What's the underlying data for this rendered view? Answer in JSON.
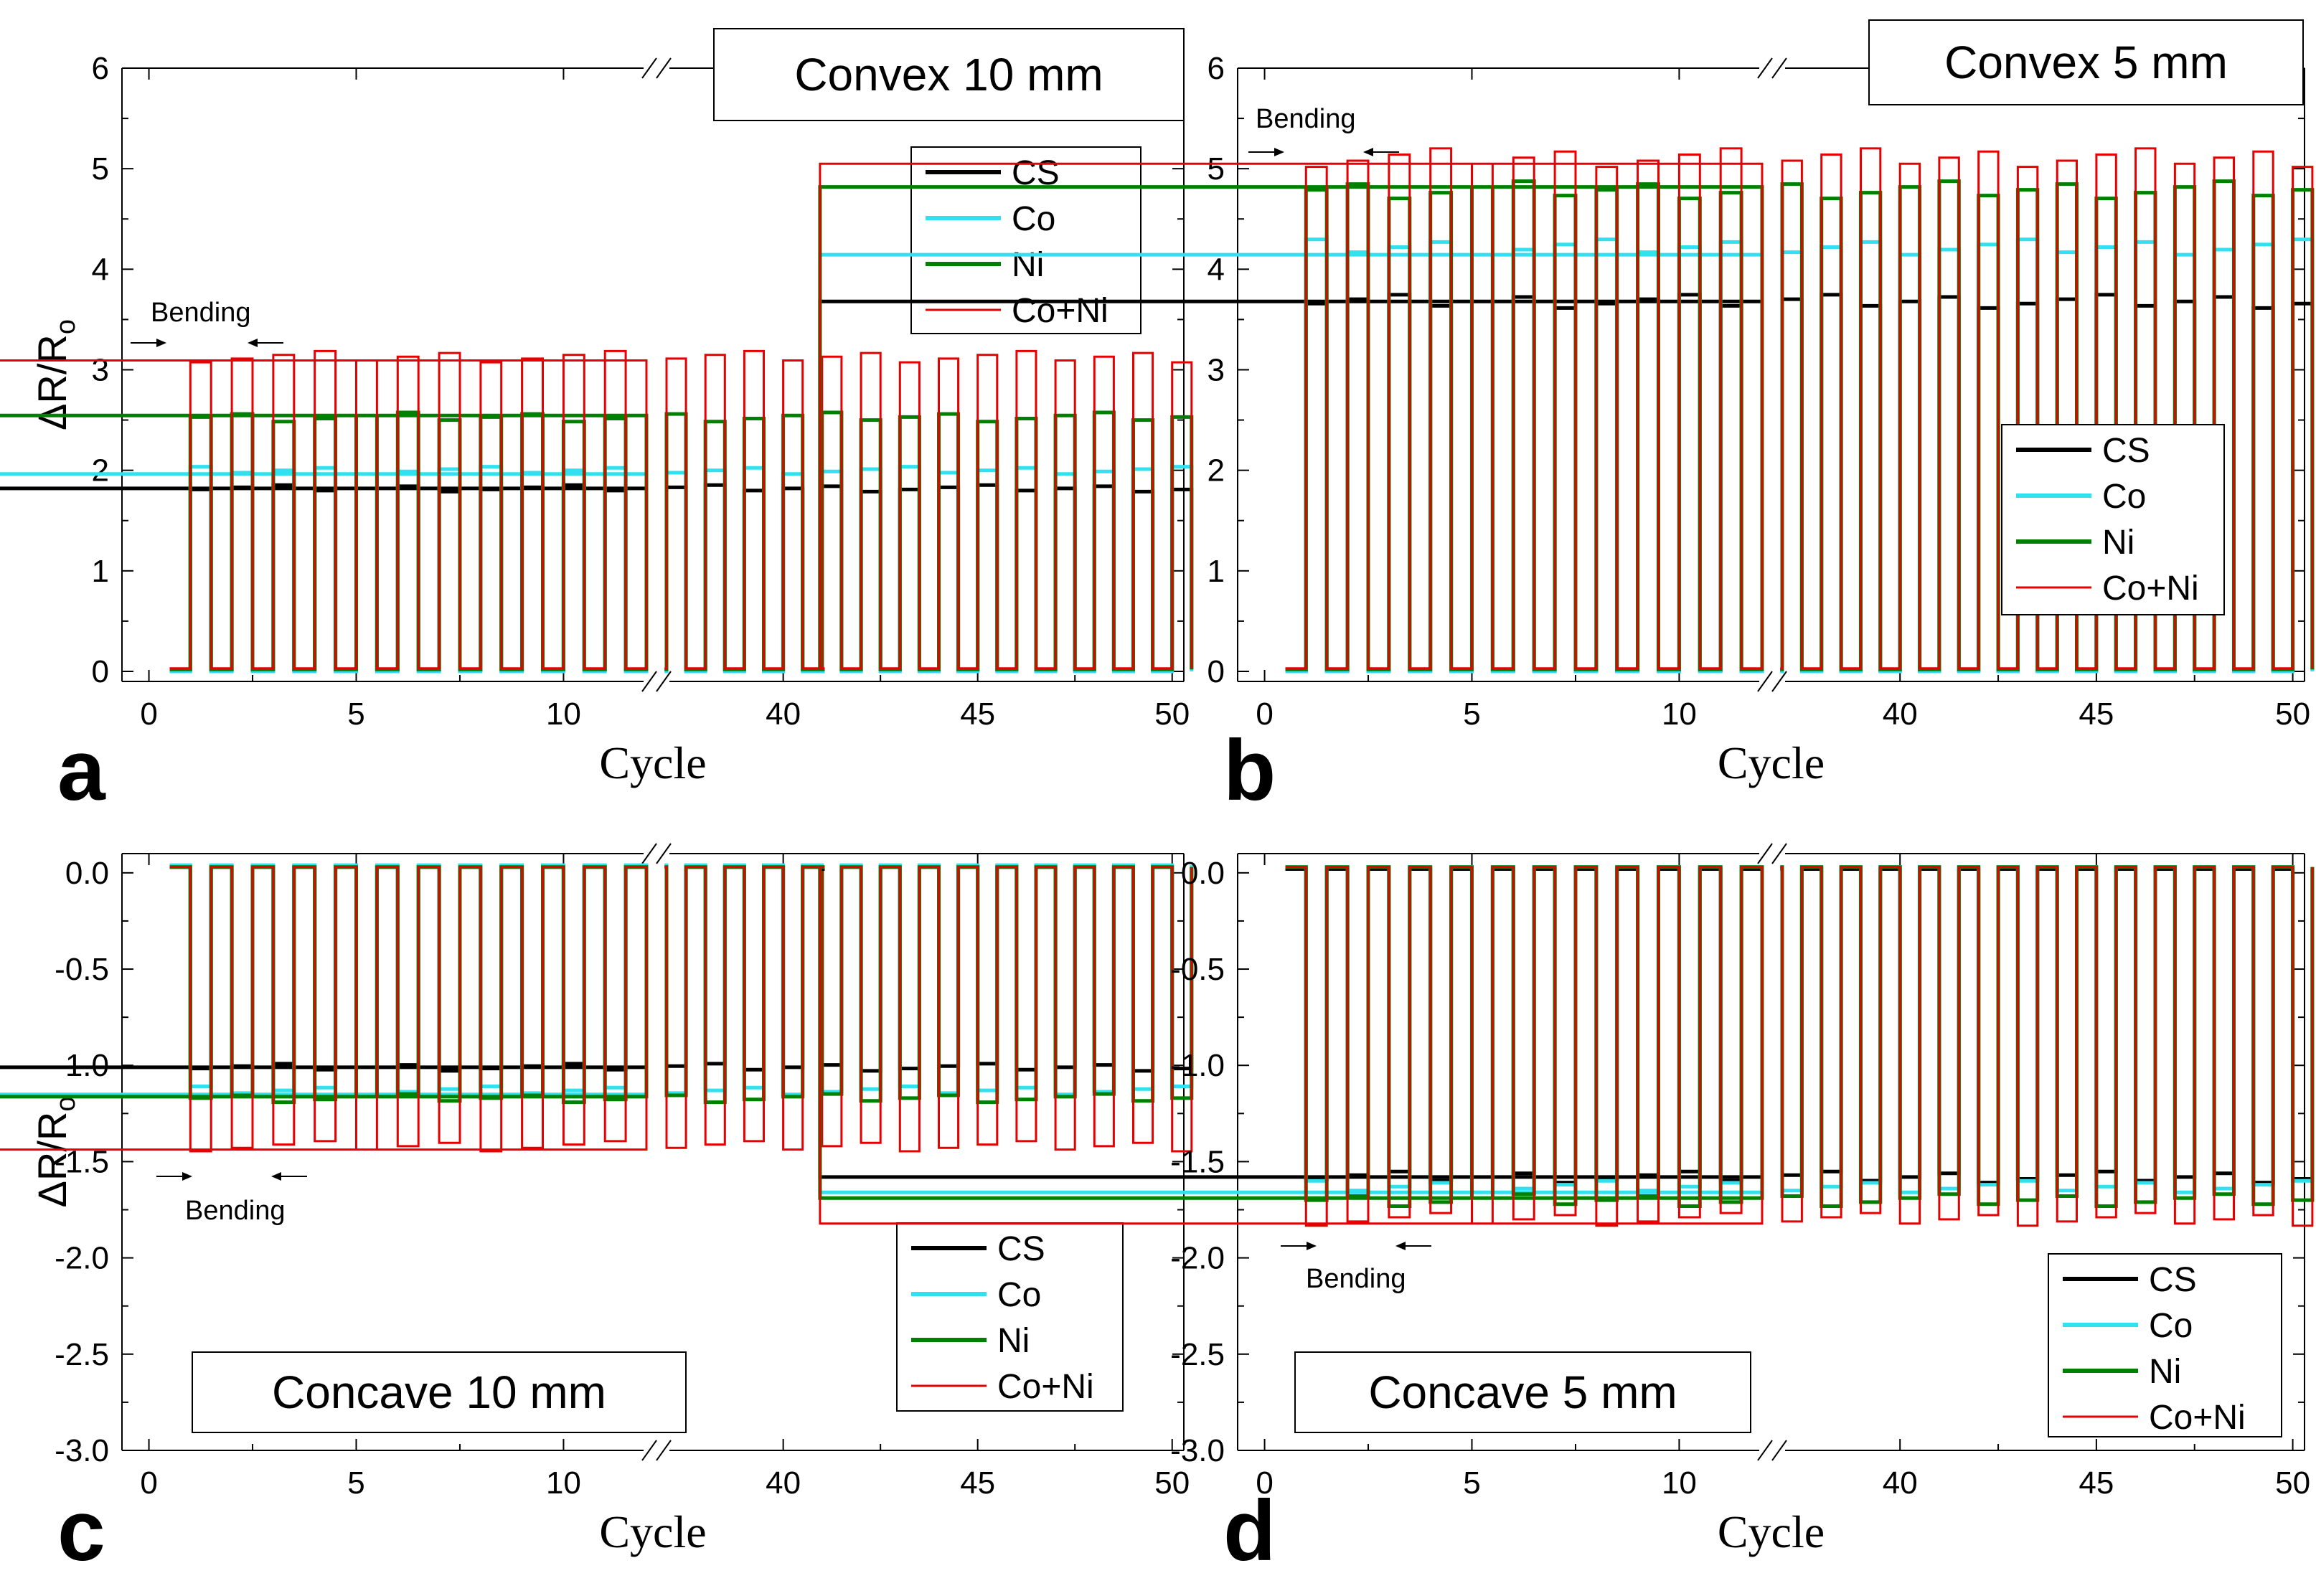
{
  "figure": {
    "ylabel": "ΔR/Ro",
    "xlabel": "Cycle",
    "bending_label": "Bending",
    "series_names": [
      "CS",
      "Co",
      "Ni",
      "Co+Ni"
    ],
    "series_colors": [
      "#000000",
      "#33e0f0",
      "#008000",
      "#e60000"
    ]
  },
  "chart_data": [
    {
      "panel": "a",
      "type": "line",
      "title": "Convex 10 mm",
      "xlabel": "Cycle",
      "ylabel": "ΔR/Ro",
      "x_break": [
        12,
        37
      ],
      "xticks_left": [
        0,
        5,
        10
      ],
      "xticks_right": [
        40,
        45,
        50
      ],
      "xtick_labels": [
        "0",
        "5",
        "10",
        "40",
        "45",
        "50"
      ],
      "ylim": [
        -0.1,
        6
      ],
      "yticks": [
        0,
        1,
        2,
        3,
        4,
        5,
        6
      ],
      "ytick_labels": [
        "0",
        "1",
        "2",
        "3",
        "4",
        "5",
        "6"
      ],
      "legend_position": "top-right",
      "waveform": "square pulse each cycle between baseline and bent level",
      "series": [
        {
          "name": "CS",
          "color": "#000000",
          "baseline": 0.02,
          "bent_level": 1.82
        },
        {
          "name": "Co",
          "color": "#33e0f0",
          "baseline": 0.0,
          "bent_level": 2.0
        },
        {
          "name": "Ni",
          "color": "#008000",
          "baseline": 0.02,
          "bent_level": 2.53
        },
        {
          "name": "Co+Ni",
          "color": "#e60000",
          "baseline": 0.03,
          "bent_level": 3.13
        }
      ]
    },
    {
      "panel": "b",
      "type": "line",
      "title": "Convex 5 mm",
      "xlabel": "Cycle",
      "ylabel": "",
      "x_break": [
        12,
        37
      ],
      "xticks_left": [
        0,
        5,
        10
      ],
      "xticks_right": [
        40,
        45,
        50
      ],
      "xtick_labels": [
        "0",
        "5",
        "10",
        "40",
        "45",
        "50"
      ],
      "ylim": [
        -0.1,
        6
      ],
      "yticks": [
        0,
        1,
        2,
        3,
        4,
        5,
        6
      ],
      "ytick_labels": [
        "0",
        "1",
        "2",
        "3",
        "4",
        "5",
        "6"
      ],
      "legend_position": "bottom-right",
      "waveform": "square pulse each cycle between baseline and bent level",
      "series": [
        {
          "name": "CS",
          "color": "#000000",
          "baseline": 0.01,
          "bent_level": 3.68
        },
        {
          "name": "Co",
          "color": "#33e0f0",
          "baseline": 0.0,
          "bent_level": 4.22
        },
        {
          "name": "Ni",
          "color": "#008000",
          "baseline": 0.02,
          "bent_level": 4.79
        },
        {
          "name": "Co+Ni",
          "color": "#e60000",
          "baseline": 0.03,
          "bent_level": 5.11
        }
      ]
    },
    {
      "panel": "c",
      "type": "line",
      "title": "Concave 10 mm",
      "xlabel": "Cycle",
      "ylabel": "ΔR/Ro",
      "x_break": [
        12,
        37
      ],
      "xticks_left": [
        0,
        5,
        10
      ],
      "xticks_right": [
        40,
        45,
        50
      ],
      "xtick_labels": [
        "0",
        "5",
        "10",
        "40",
        "45",
        "50"
      ],
      "ylim": [
        -3.0,
        0.1
      ],
      "yticks": [
        0.0,
        -0.5,
        -1.0,
        -1.5,
        -2.0,
        -2.5,
        -3.0
      ],
      "ytick_labels": [
        "0.0",
        "-0.5",
        "-1.0",
        "-1.5",
        "-2.0",
        "-2.5",
        "-3.0"
      ],
      "legend_position": "bottom-right",
      "waveform": "square pulse each cycle between baseline and bent level",
      "series": [
        {
          "name": "CS",
          "color": "#000000",
          "baseline": 0.03,
          "bent_level": -1.01
        },
        {
          "name": "Co",
          "color": "#33e0f0",
          "baseline": 0.04,
          "bent_level": -1.13
        },
        {
          "name": "Ni",
          "color": "#008000",
          "baseline": 0.03,
          "bent_level": -1.17
        },
        {
          "name": "Co+Ni",
          "color": "#e60000",
          "baseline": 0.03,
          "bent_level": -1.42
        }
      ]
    },
    {
      "panel": "d",
      "type": "line",
      "title": "Concave 5 mm",
      "xlabel": "Cycle",
      "ylabel": "",
      "x_break": [
        12,
        37
      ],
      "xticks_left": [
        0,
        5,
        10
      ],
      "xticks_right": [
        40,
        45,
        50
      ],
      "xtick_labels": [
        "0",
        "5",
        "10",
        "40",
        "45",
        "50"
      ],
      "ylim": [
        -3.0,
        0.1
      ],
      "yticks": [
        0.0,
        -0.5,
        -1.0,
        -1.5,
        -2.0,
        -2.5,
        -3.0
      ],
      "ytick_labels": [
        "0.0",
        "-0.5",
        "-1.0",
        "-1.5",
        "-2.0",
        "-2.5",
        "-3.0"
      ],
      "legend_position": "bottom-right",
      "waveform": "square pulse each cycle between baseline and bent level",
      "series": [
        {
          "name": "CS",
          "color": "#000000",
          "baseline": 0.02,
          "bent_level": -1.58
        },
        {
          "name": "Co",
          "color": "#33e0f0",
          "baseline": 0.03,
          "bent_level": -1.63
        },
        {
          "name": "Ni",
          "color": "#008000",
          "baseline": 0.03,
          "bent_level": -1.7
        },
        {
          "name": "Co+Ni",
          "color": "#e60000",
          "baseline": 0.03,
          "bent_level": -1.8
        }
      ]
    }
  ]
}
